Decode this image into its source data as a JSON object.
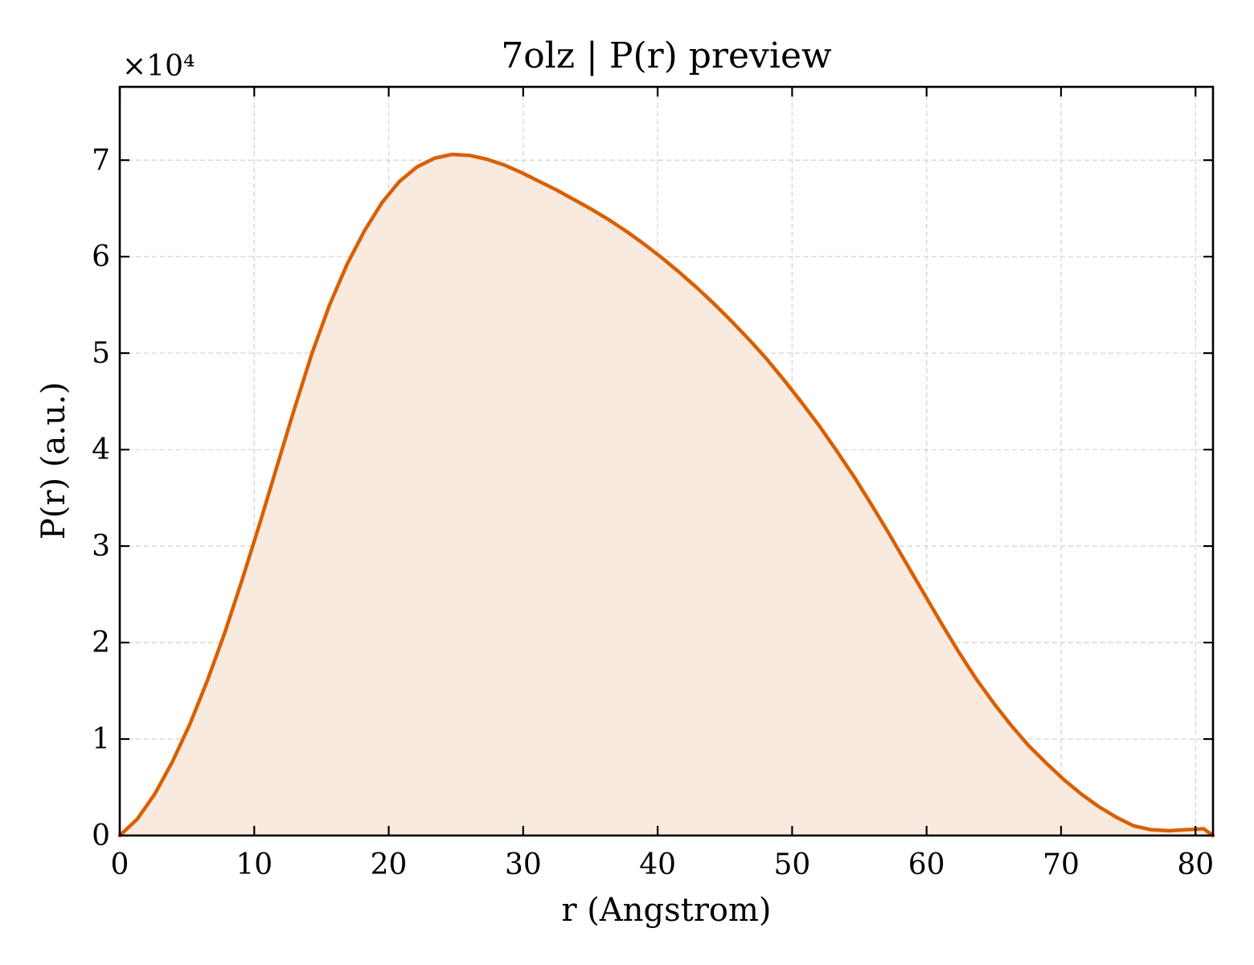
{
  "chart_data": {
    "type": "area",
    "title": "7olz | P(r) preview",
    "xlabel": "r (Angstrom)",
    "ylabel": "P(r) (a.u.)",
    "y_multiplier_label": "×10⁴",
    "xlim": [
      0,
      81.3
    ],
    "ylim": [
      0,
      77600
    ],
    "x_ticks": [
      0,
      10,
      20,
      30,
      40,
      50,
      60,
      70,
      80
    ],
    "x_tick_labels": [
      "0",
      "10",
      "20",
      "30",
      "40",
      "50",
      "60",
      "70",
      "80"
    ],
    "y_ticks": [
      0,
      10000,
      20000,
      30000,
      40000,
      50000,
      60000,
      70000
    ],
    "y_tick_labels": [
      "0",
      "1",
      "2",
      "3",
      "4",
      "5",
      "6",
      "7"
    ],
    "grid": true,
    "line_color": "#d95f02",
    "fill_color": "#f9eadf",
    "series": [
      {
        "x": [
          0,
          1.3,
          2.6,
          3.9,
          5.2,
          6.5,
          7.8,
          9.1,
          10.4,
          11.7,
          13.0,
          14.3,
          15.6,
          16.9,
          18.2,
          19.5,
          20.8,
          22.1,
          23.4,
          24.7,
          26.0,
          27.3,
          28.6,
          29.9,
          31.2,
          32.5,
          33.8,
          35.1,
          36.4,
          37.7,
          39.0,
          40.3,
          41.6,
          42.9,
          44.2,
          45.5,
          46.8,
          48.1,
          49.4,
          50.7,
          52.0,
          53.3,
          54.6,
          55.9,
          57.2,
          58.5,
          59.8,
          61.1,
          62.4,
          63.7,
          65.0,
          66.3,
          67.6,
          68.9,
          70.2,
          71.5,
          72.8,
          74.1,
          75.4,
          76.7,
          78.0,
          79.3,
          80.6,
          81.3
        ],
        "y": [
          0,
          1700,
          4300,
          7600,
          11500,
          16000,
          21000,
          26500,
          32300,
          38300,
          44300,
          50000,
          55000,
          59200,
          62700,
          65600,
          67800,
          69300,
          70200,
          70600,
          70500,
          70100,
          69500,
          68700,
          67800,
          66900,
          65900,
          64900,
          63800,
          62600,
          61300,
          59900,
          58400,
          56800,
          55100,
          53300,
          51400,
          49400,
          47200,
          44900,
          42500,
          39900,
          37200,
          34300,
          31300,
          28200,
          25100,
          22000,
          19000,
          16200,
          13700,
          11400,
          9300,
          7500,
          5800,
          4300,
          3000,
          1900,
          1000,
          600,
          500,
          600,
          700,
          0
        ]
      }
    ]
  }
}
